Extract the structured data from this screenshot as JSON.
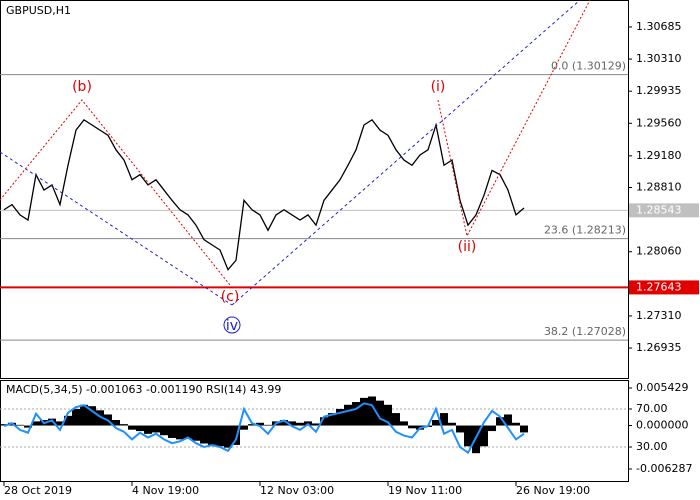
{
  "chart_data": {
    "type": "line",
    "title": "GBPUSD,H1",
    "categories": [
      "28 Oct 2019",
      null,
      null,
      null,
      null,
      null,
      null,
      null,
      null,
      null,
      null,
      null,
      null,
      null,
      null,
      null,
      "4 Nov 19:00",
      null,
      null,
      null,
      null,
      null,
      null,
      null,
      null,
      null,
      null,
      null,
      null,
      null,
      null,
      null,
      "12 Nov 03:00",
      null,
      null,
      null,
      null,
      null,
      null,
      null,
      null,
      null,
      null,
      null,
      null,
      null,
      null,
      null,
      "19 Nov 11:00",
      null,
      null,
      null,
      null,
      null,
      null,
      null,
      null,
      null,
      null,
      null,
      null,
      null,
      null,
      null,
      "26 Nov 19:00",
      null
    ],
    "series": [
      {
        "name": "GBPUSD",
        "color": "#000000",
        "values": [
          1.2855,
          1.2861,
          1.2849,
          1.2843,
          1.2896,
          1.2878,
          1.2884,
          1.2861,
          1.2907,
          1.2948,
          1.296,
          1.2954,
          1.2948,
          1.2942,
          1.2925,
          1.2913,
          1.289,
          1.2896,
          1.2884,
          1.289,
          1.2878,
          1.2866,
          1.2855,
          1.2849,
          1.2837,
          1.282,
          1.2814,
          1.2808,
          1.2785,
          1.2796,
          1.2866,
          1.2855,
          1.2849,
          1.2831,
          1.2849,
          1.2855,
          1.2849,
          1.2843,
          1.2849,
          1.2837,
          1.2866,
          1.2878,
          1.289,
          1.2907,
          1.2925,
          1.2954,
          1.296,
          1.2948,
          1.2942,
          1.2925,
          1.2913,
          1.2907,
          1.2919,
          1.2925,
          1.2954,
          1.2907,
          1.2913,
          1.2866,
          1.2837,
          1.2849,
          1.2872,
          1.2901,
          1.2896,
          1.2878,
          1.2849,
          1.2857
        ]
      }
    ],
    "ylim": [
      1.26585,
      1.31
    ],
    "yticks": [
      1.30685,
      {
        "value": 1.3031,
        "label": "1.30310"
      },
      1.29935,
      {
        "value": 1.2956,
        "label": "1.29560"
      },
      {
        "value": 1.2918,
        "label": "1.29180"
      },
      {
        "value": 1.2881,
        "label": "1.28810"
      },
      {
        "value": 1.2806,
        "label": "1.28060"
      },
      {
        "value": 1.2731,
        "label": "1.27310"
      },
      1.26935
    ],
    "levels": [
      {
        "value": 1.30129,
        "label": "0.0 (1.30129)"
      },
      {
        "value": 1.28213,
        "label": "23.6 (1.28213)"
      },
      {
        "value": 1.27028,
        "label": "38.2 (1.27028)"
      }
    ],
    "support": {
      "value": 1.27643,
      "color": "#e00000"
    },
    "current_price": 1.28543,
    "annotations": [
      "(b)",
      "(i)",
      "(ii)",
      "(c)",
      "iv"
    ],
    "indicator": {
      "title": "MACD(5,34,5) -0.001063 -0.001190 RSI(14) 43.99",
      "macd": {
        "color": "#000000",
        "values": [
          0.0002,
          0.0004,
          0.0001,
          -0.0003,
          0.0006,
          0.0008,
          0.001,
          0.0006,
          0.0014,
          0.0024,
          0.003,
          0.0028,
          0.0022,
          0.0016,
          0.0008,
          0.0002,
          -0.0006,
          -0.0008,
          -0.0012,
          -0.001,
          -0.0014,
          -0.0018,
          -0.002,
          -0.0019,
          -0.0022,
          -0.0026,
          -0.0028,
          -0.003,
          -0.0032,
          -0.0028,
          -0.0006,
          0.0002,
          0.0004,
          0.0001,
          0.0006,
          0.0008,
          0.0006,
          0.0004,
          0.0006,
          0.0003,
          0.0012,
          0.0018,
          0.0024,
          0.003,
          0.0034,
          0.004,
          0.0042,
          0.0036,
          0.003,
          0.0018,
          0.0006,
          -0.0004,
          -0.0006,
          -0.0002,
          0.0008,
          0.0018,
          0.0004,
          -0.001,
          -0.003,
          -0.004,
          -0.003,
          -0.0008,
          0.0012,
          0.0016,
          0.0004,
          -0.001
        ]
      },
      "rsi": {
        "color": "#1e90ff",
        "values": [
          52,
          55,
          48,
          45,
          65,
          55,
          58,
          48,
          66,
          72,
          74,
          68,
          62,
          58,
          50,
          46,
          38,
          45,
          40,
          44,
          38,
          34,
          36,
          40,
          34,
          30,
          32,
          30,
          26,
          38,
          70,
          55,
          52,
          44,
          55,
          58,
          52,
          48,
          54,
          46,
          62,
          64,
          66,
          68,
          70,
          76,
          74,
          60,
          56,
          46,
          42,
          40,
          50,
          52,
          70,
          44,
          48,
          30,
          24,
          40,
          56,
          68,
          62,
          50,
          38,
          44
        ]
      },
      "ylim": [
        -0.006287,
        0.005429
      ],
      "yticks": [
        0.005429,
        {
          "value": 0,
          "label": "0.000000"
        },
        -0.006287
      ],
      "y2lim": [
        0,
        100
      ],
      "y2ticks": [
        {
          "value": 70,
          "label": "70.00"
        },
        {
          "value": 30,
          "label": "30.00"
        }
      ]
    }
  }
}
